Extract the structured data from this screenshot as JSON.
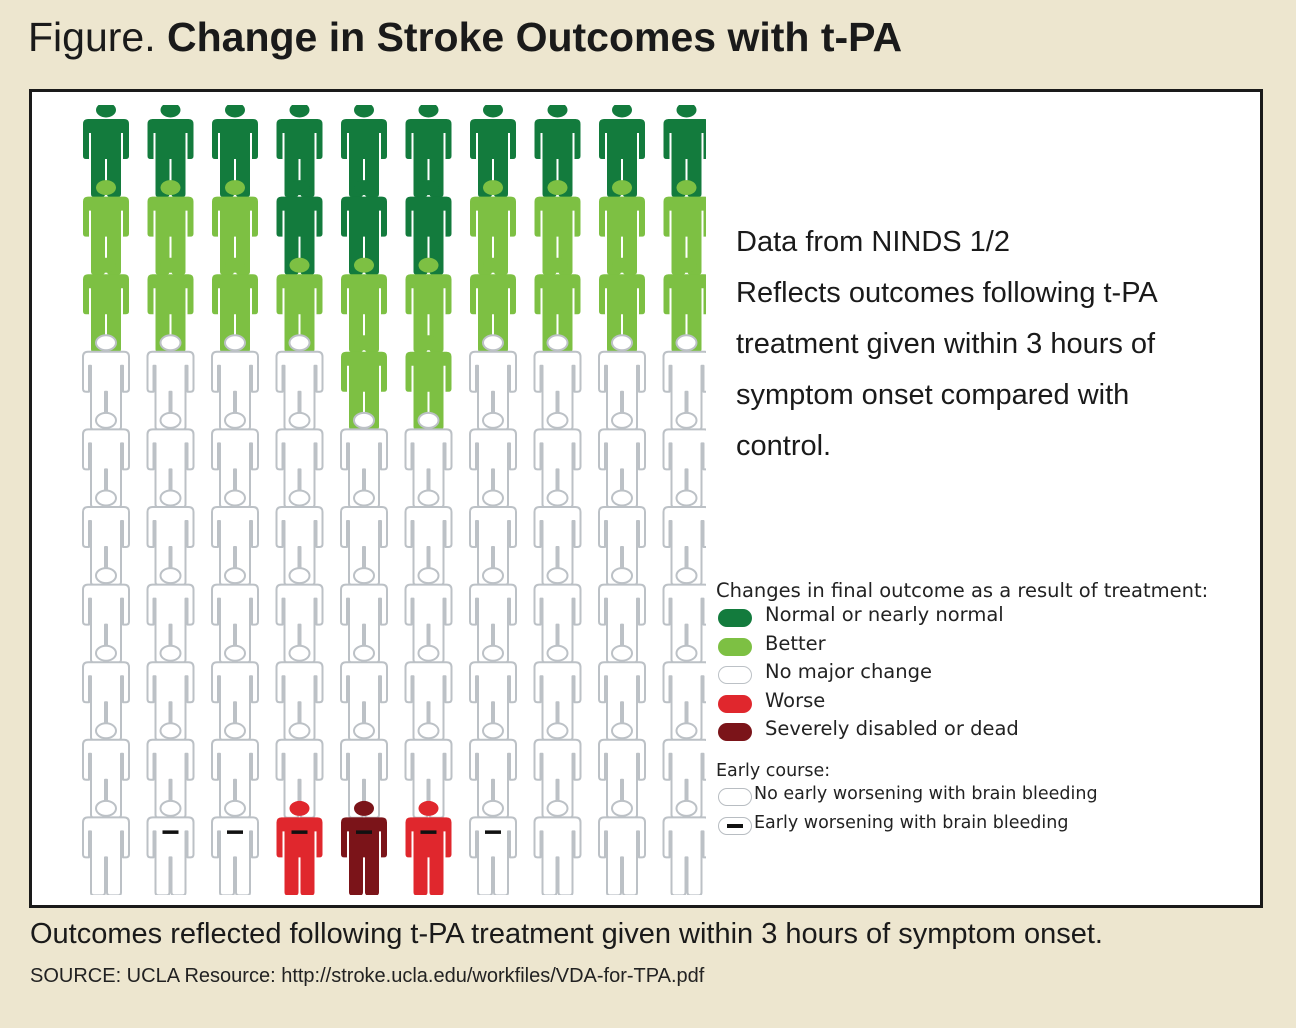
{
  "figure": {
    "title_prefix": "Figure.",
    "title_main": "Change in Stroke Outcomes with t-PA"
  },
  "intro_lines": [
    "Data from NINDS 1/2",
    "Reflects outcomes following t-PA",
    "treatment given within 3 hours of",
    "symptom onset compared with",
    "control."
  ],
  "legend": {
    "title": "Changes in final outcome as a result of treatment:",
    "items": [
      {
        "label": "Normal or nearly normal",
        "color": "#137b3d"
      },
      {
        "label": "Better",
        "color": "#7dc043"
      },
      {
        "label": "No major change",
        "color": "#ffffff"
      },
      {
        "label": "Worse",
        "color": "#e0272d"
      },
      {
        "label": "Severely disabled or dead",
        "color": "#7b1419"
      }
    ],
    "early_title": "Early course:",
    "early_items": [
      {
        "label": "No early worsening with brain bleeding",
        "mark": false
      },
      {
        "label": "Early worsening with brain bleeding",
        "mark": true
      }
    ]
  },
  "grid": {
    "rows": 10,
    "cols": 10,
    "outcomes": [
      [
        "N",
        "N",
        "N",
        "N",
        "N",
        "N",
        "N",
        "N",
        "N",
        "N"
      ],
      [
        "B",
        "B",
        "B",
        "N",
        "N",
        "N",
        "B",
        "B",
        "B",
        "B"
      ],
      [
        "B",
        "B",
        "B",
        "B",
        "B",
        "B",
        "B",
        "B",
        "B",
        "B"
      ],
      [
        "C",
        "C",
        "C",
        "C",
        "B",
        "B",
        "C",
        "C",
        "C",
        "C"
      ],
      [
        "C",
        "C",
        "C",
        "C",
        "C",
        "C",
        "C",
        "C",
        "C",
        "C"
      ],
      [
        "C",
        "C",
        "C",
        "C",
        "C",
        "C",
        "C",
        "C",
        "C",
        "C"
      ],
      [
        "C",
        "C",
        "C",
        "C",
        "C",
        "C",
        "C",
        "C",
        "C",
        "C"
      ],
      [
        "C",
        "C",
        "C",
        "C",
        "C",
        "C",
        "C",
        "C",
        "C",
        "C"
      ],
      [
        "C",
        "C",
        "C",
        "C",
        "C",
        "C",
        "C",
        "C",
        "C",
        "C"
      ],
      [
        "C",
        "C",
        "C",
        "W",
        "S",
        "W",
        "C",
        "C",
        "C",
        "C"
      ]
    ],
    "early_worsening": [
      [
        9,
        1
      ],
      [
        9,
        2
      ],
      [
        9,
        3
      ],
      [
        9,
        4
      ],
      [
        9,
        5
      ],
      [
        9,
        6
      ]
    ],
    "colors": {
      "N": "#137b3d",
      "B": "#7dc043",
      "C": "#ffffff",
      "W": "#e0272d",
      "S": "#7b1419",
      "outline": "#bcc1c6"
    }
  },
  "caption": "Outcomes reflected following t-PA treatment given within 3 hours of symptom onset.",
  "source": "SOURCE: UCLA Resource: http://stroke.ucla.edu/workfiles/VDA-for-TPA.pdf"
}
